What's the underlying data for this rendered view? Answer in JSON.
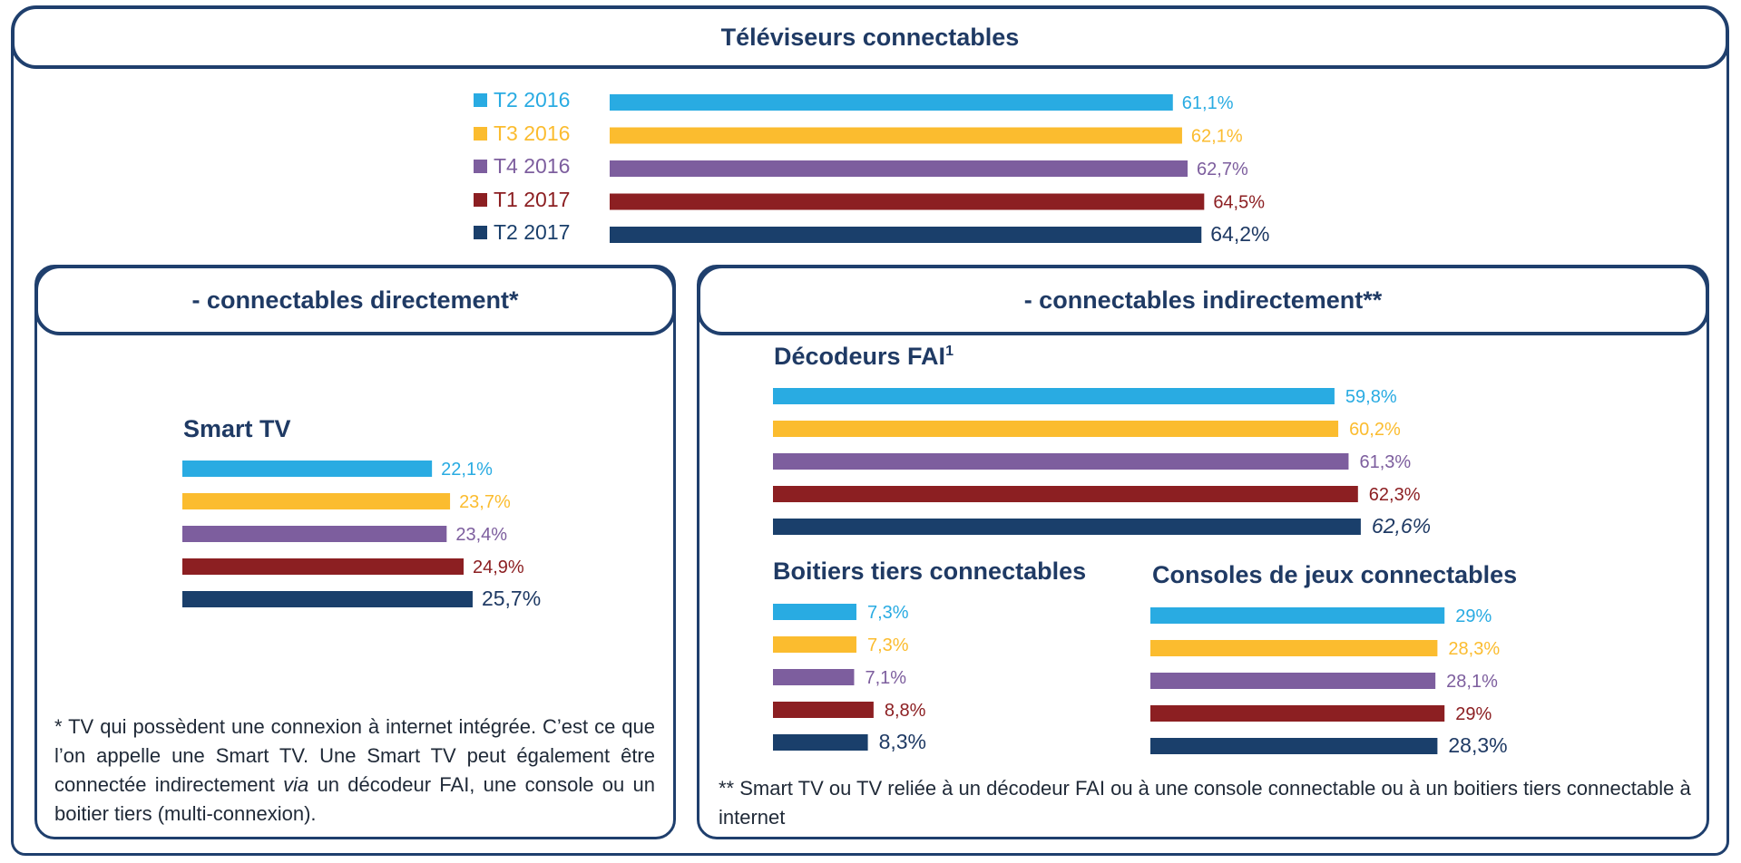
{
  "title": "Téléviseurs connectables",
  "colors": {
    "frame": "#1f3f6d",
    "title_text": "#1f3a64",
    "series": [
      "#29abe2",
      "#fbbc2f",
      "#7d5e9e",
      "#8c1f22",
      "#1a3f6b"
    ]
  },
  "legend": [
    "T2 2016",
    "T3 2016",
    "T4 2016",
    "T1 2017",
    "T2 2017"
  ],
  "sections": {
    "left": "- connectables directement*",
    "right": "- connectables indirectement**"
  },
  "chart_data": [
    {
      "id": "chart-main",
      "type": "bar",
      "orientation": "horizontal",
      "title": "Téléviseurs connectables",
      "categories": [
        "T2 2016",
        "T3 2016",
        "T4 2016",
        "T1 2017",
        "T2 2017"
      ],
      "values": [
        61.1,
        62.1,
        62.7,
        64.5,
        64.2
      ],
      "labels": [
        "61,1%",
        "62,1%",
        "62,7%",
        "64,5%",
        "64,2%"
      ],
      "xlim": [
        0,
        100
      ]
    },
    {
      "id": "chart-smarttv",
      "type": "bar",
      "orientation": "horizontal",
      "title": "Smart TV",
      "categories": [
        "T2 2016",
        "T3 2016",
        "T4 2016",
        "T1 2017",
        "T2 2017"
      ],
      "values": [
        22.1,
        23.7,
        23.4,
        24.9,
        25.7
      ],
      "labels": [
        "22,1%",
        "23,7%",
        "23,4%",
        "24,9%",
        "25,7%"
      ],
      "xlim": [
        0,
        100
      ]
    },
    {
      "id": "chart-decodeurs",
      "type": "bar",
      "orientation": "horizontal",
      "title": "Décodeurs FAI",
      "title_sup": "1",
      "categories": [
        "T2 2016",
        "T3 2016",
        "T4 2016",
        "T1 2017",
        "T2 2017"
      ],
      "values": [
        59.8,
        60.2,
        61.3,
        62.3,
        62.6
      ],
      "labels": [
        "59,8%",
        "60,2%",
        "61,3%",
        "62,3%",
        "62,6%"
      ],
      "xlim": [
        0,
        100
      ]
    },
    {
      "id": "chart-boitiers",
      "type": "bar",
      "orientation": "horizontal",
      "title": "Boitiers tiers connectables",
      "categories": [
        "T2 2016",
        "T3 2016",
        "T4 2016",
        "T1 2017",
        "T2 2017"
      ],
      "values": [
        7.3,
        7.3,
        7.1,
        8.8,
        8.3
      ],
      "labels": [
        "7,3%",
        "7,3%",
        "7,1%",
        "8,8%",
        "8,3%"
      ],
      "xlim": [
        0,
        100
      ]
    },
    {
      "id": "chart-consoles",
      "type": "bar",
      "orientation": "horizontal",
      "title": "Consoles de jeux connectables",
      "categories": [
        "T2 2016",
        "T3 2016",
        "T4 2016",
        "T1 2017",
        "T2 2017"
      ],
      "values": [
        29,
        28.3,
        28.1,
        29,
        28.3
      ],
      "labels": [
        "29%",
        "28,3%",
        "28,1%",
        "29%",
        "28,3%"
      ],
      "xlim": [
        0,
        100
      ]
    }
  ],
  "notes": {
    "left_pre": "* TV qui possèdent une connexion à internet intégrée. C’est ce que l’on appelle une Smart TV. Une Smart TV peut également être connectée indirectement ",
    "left_italic": "via",
    "left_post": " un décodeur FAI, une console ou un boitier tiers (multi-connexion).",
    "right": "**  Smart TV ou TV reliée à un décodeur FAI ou à une console connectable ou à un boitiers tiers connectable à internet"
  }
}
